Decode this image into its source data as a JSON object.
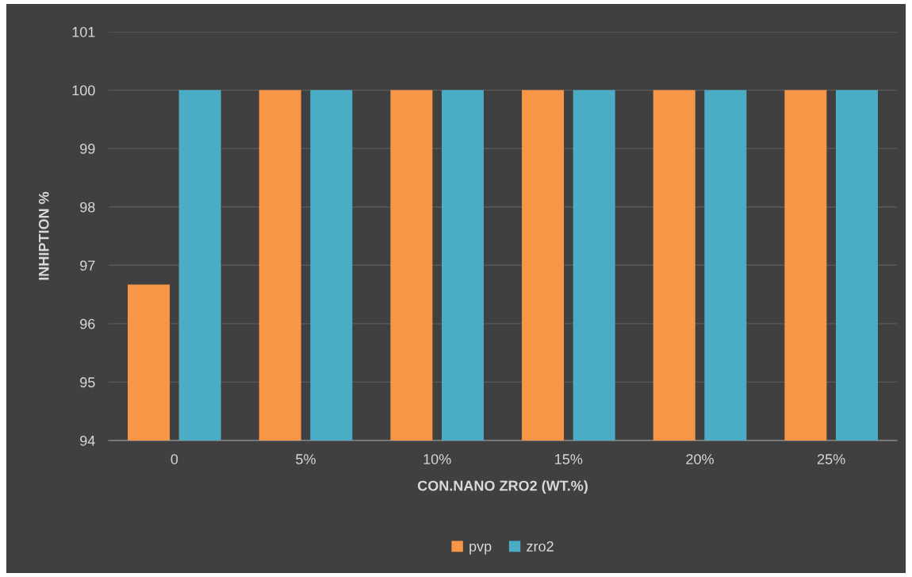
{
  "chart_data": {
    "type": "bar",
    "xlabel": "CON.NANO ZRO2 (WT.%)",
    "ylabel": "INHIPTION %",
    "categories": [
      "0",
      "5%",
      "10%",
      "15%",
      "20%",
      "25%"
    ],
    "series": [
      {
        "name": "pvp",
        "color": "#f79646",
        "values": [
          96.67,
          100,
          100,
          100,
          100,
          100
        ]
      },
      {
        "name": "zro2",
        "color": "#4bacc6",
        "values": [
          100,
          100,
          100,
          100,
          100,
          100
        ]
      }
    ],
    "ylim": [
      94,
      101
    ],
    "yticks": [
      94,
      95,
      96,
      97,
      98,
      99,
      100,
      101
    ],
    "grid": "y",
    "legend": "bottom"
  }
}
